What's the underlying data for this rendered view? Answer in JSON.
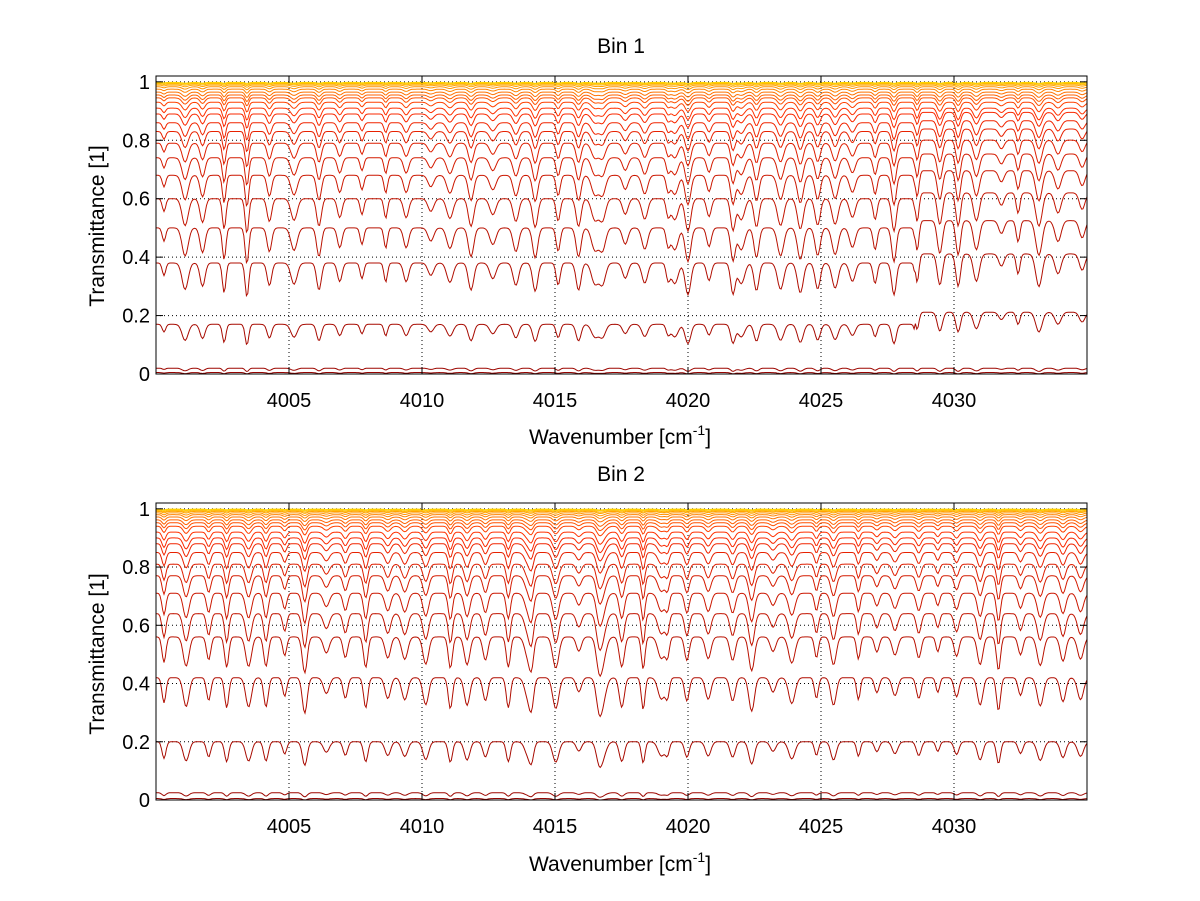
{
  "chart_data": [
    {
      "type": "line",
      "title": "Bin 1",
      "xlabel": "Wavenumber [cm",
      "xlabel_sup": "-1",
      "xlabel_tail": "]",
      "ylabel": "Transmittance [1]",
      "xlim": [
        4000,
        4035
      ],
      "ylim": [
        0,
        1.02
      ],
      "xticks": [
        4005,
        4010,
        4015,
        4020,
        4025,
        4030
      ],
      "yticks": [
        0,
        0.2,
        0.4,
        0.6,
        0.8,
        1
      ],
      "ytick_labels": [
        "0",
        "0.2",
        "0.4",
        "0.6",
        "0.8",
        "1"
      ],
      "grid": true,
      "grid_style": "dotted",
      "n_lines": 24,
      "colormap": "dark red to orange to yellow",
      "line_color_start": "#8b0000",
      "line_color_mid": "#ff2a00",
      "line_color_end": "#ffd400",
      "series_summary": {
        "baseline_levels": [
          0.0,
          0.005,
          0.02,
          0.17,
          0.38,
          0.5,
          0.6,
          0.68,
          0.74,
          0.79,
          0.83,
          0.86,
          0.89,
          0.91,
          0.93,
          0.945,
          0.955,
          0.965,
          0.975,
          0.983,
          0.989,
          0.993,
          0.996,
          0.998
        ],
        "deepest_dip_near": [
          4016.5,
          4019.5,
          4022.0
        ],
        "step_near": 4028.5
      }
    },
    {
      "type": "line",
      "title": "Bin 2",
      "xlabel": "Wavenumber [cm",
      "xlabel_sup": "-1",
      "xlabel_tail": "]",
      "ylabel": "Transmittance [1]",
      "xlim": [
        4000,
        4035
      ],
      "ylim": [
        0,
        1.02
      ],
      "xticks": [
        4005,
        4010,
        4015,
        4020,
        4025,
        4030
      ],
      "yticks": [
        0,
        0.2,
        0.4,
        0.6,
        0.8,
        1
      ],
      "ytick_labels": [
        "0",
        "0.2",
        "0.4",
        "0.6",
        "0.8",
        "1"
      ],
      "grid": true,
      "grid_style": "dotted",
      "n_lines": 24,
      "colormap": "dark red to orange to yellow",
      "line_color_start": "#8b0000",
      "line_color_mid": "#ff2a00",
      "line_color_end": "#ffd400",
      "series_summary": {
        "baseline_levels": [
          0.0,
          0.005,
          0.025,
          0.2,
          0.42,
          0.56,
          0.64,
          0.71,
          0.77,
          0.81,
          0.85,
          0.88,
          0.9,
          0.92,
          0.94,
          0.952,
          0.962,
          0.972,
          0.98,
          0.986,
          0.991,
          0.994,
          0.997,
          0.999
        ],
        "deepest_dip_near": [
          4016.8,
          4019.0,
          4014.0
        ],
        "step_near": null
      }
    }
  ]
}
